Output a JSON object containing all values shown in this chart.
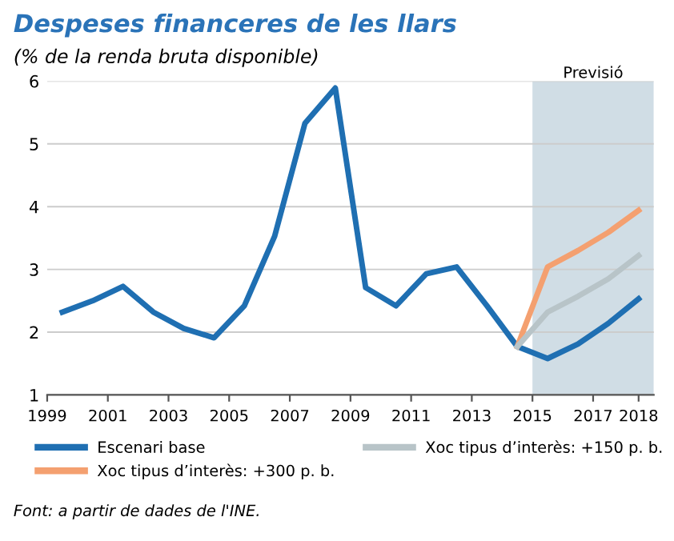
{
  "chart_data": {
    "type": "line",
    "title": "Despeses financeres de les llars",
    "subtitle": "(% de la renda bruta disponible)",
    "x": [
      1999.5,
      2000.5,
      2001.5,
      2002.5,
      2003.5,
      2004.5,
      2005.5,
      2006.5,
      2007.5,
      2008.5,
      2009.5,
      2010.5,
      2011.5,
      2012.5,
      2013.5,
      2014.5,
      2015.5,
      2016.5,
      2017.5,
      2018.5
    ],
    "series": [
      {
        "name": "Escenari base",
        "color": "#1f6fb2",
        "values": [
          2.32,
          2.5,
          2.73,
          2.32,
          2.06,
          1.91,
          2.42,
          3.53,
          5.33,
          5.89,
          2.71,
          2.42,
          2.93,
          3.04,
          2.42,
          1.77,
          1.58,
          1.81,
          2.14,
          2.53
        ]
      },
      {
        "name": "Xoc tipus d’interès: +300 p. b.",
        "color": "#f4a070",
        "values": [
          null,
          null,
          null,
          null,
          null,
          null,
          null,
          null,
          null,
          null,
          null,
          null,
          null,
          null,
          null,
          1.77,
          3.04,
          3.3,
          3.59,
          3.94
        ]
      },
      {
        "name": "Xoc tipus d’interès: +150 p. b.",
        "color": "#b8c4c8",
        "values": [
          null,
          null,
          null,
          null,
          null,
          null,
          null,
          null,
          null,
          null,
          null,
          null,
          null,
          null,
          null,
          1.77,
          2.32,
          2.57,
          2.85,
          3.22
        ]
      }
    ],
    "xlim": [
      1999,
      2019
    ],
    "xticks": [
      1999,
      2001,
      2003,
      2005,
      2007,
      2009,
      2011,
      2013,
      2015,
      2017,
      {
        "value": 2018.5,
        "label": "2018"
      }
    ],
    "ylim": [
      1,
      6
    ],
    "yticks": [
      1,
      2,
      3,
      4,
      5,
      6
    ],
    "grid": "y",
    "legend": "bottom",
    "marker": "none",
    "line_style": "solid",
    "bands": [
      {
        "axis": "x",
        "from": 2015,
        "to": 2019,
        "label": "Previsió",
        "color": "#d0dde5"
      }
    ],
    "annotations": [
      "Font: a partir de dades de l'INE."
    ]
  }
}
